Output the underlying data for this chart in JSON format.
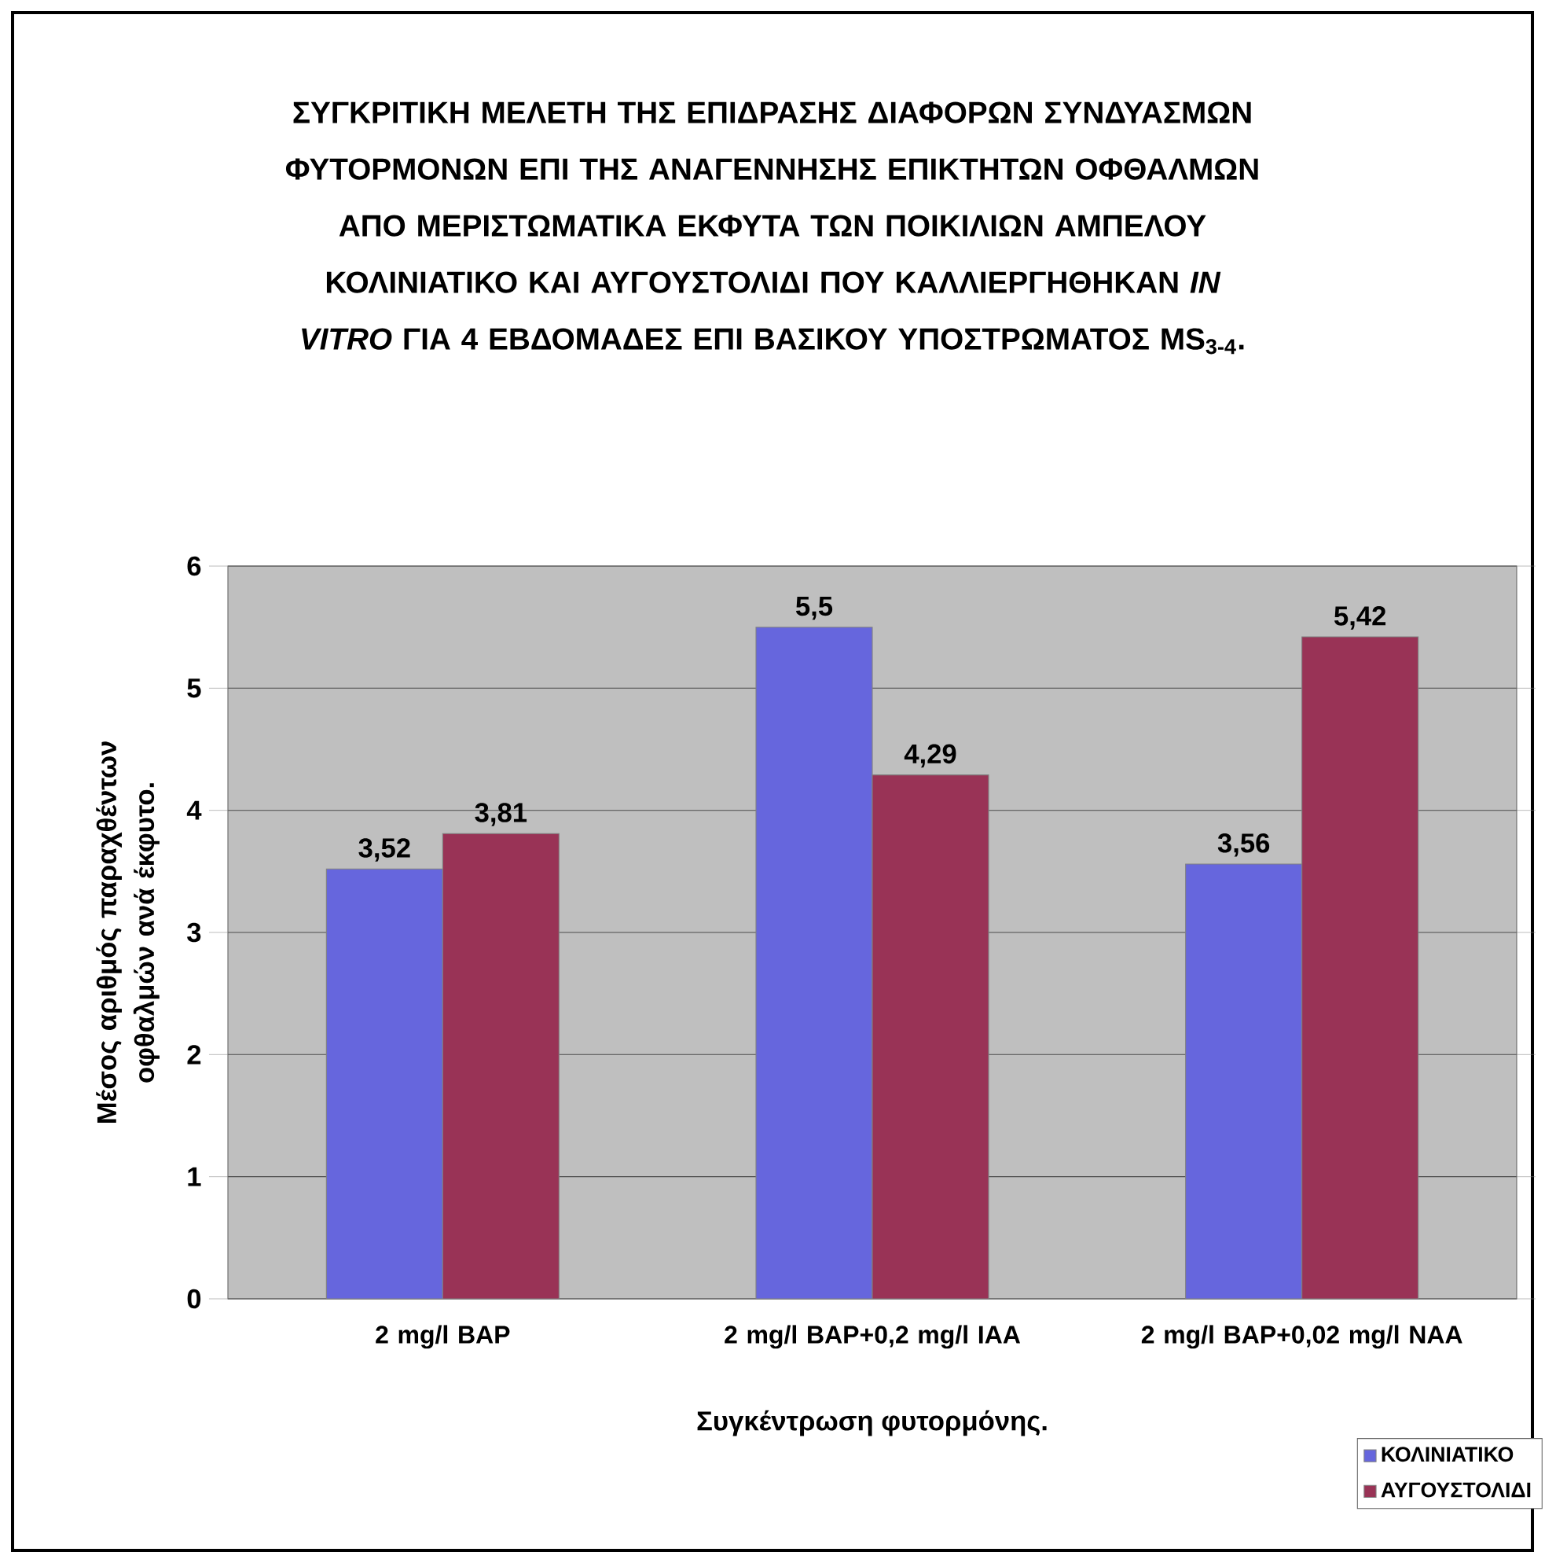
{
  "chart_data": {
    "type": "bar",
    "title": "ΣΥΓΚΡΙΤΙΚΗ ΜΕΛΕΤΗ ΤΗΣ ΕΠΙΔΡΑΣΗΣ ΔΙΑΦΟΡΩΝ ΣΥΝΔΥΑΣΜΩΝ ΦΥΤΟΡΜΟΝΩΝ ΕΠΙ ΤΗΣ ΑΝΑΓΕΝΝΗΣΗΣ ΕΠΙΚΤΗΤΩΝ ΟΦΘΑΛΜΩΝ ΑΠΟ ΜΕΡΙΣΤΩΜΑΤΙΚΑ ΕΚΦΥΤΑ ΤΩΝ ΠΟΙΚΙΛΙΩΝ ΑΜΠΕΛΟΥ ΚΟΛΙΝΙΑΤΙΚΟ ΚΑΙ ΑΥΓΟΥΣΤΟΛΙΔΙ ΠΟΥ ΚΑΛΛΙΕΡΓΗΘΗΚΑΝ *IN VITRO* ΓΙΑ 4 ΕΒΔΟΜΑΔΕΣ ΕΠΙ ΒΑΣΙΚΟΥ ΥΠΟΣΤΡΩΜΑΤΟΣ MS$_{3-4}$.",
    "xlabel": "Συγκέντρωση φυτορμόνης.",
    "ylabel": "Μέσος αριθμός παραχθέντων οφθαλμών ανά έκφυτο.",
    "categories": [
      "2 mg/l BAP",
      "2 mg/l BAP+0,2 mg/l IAA",
      "2 mg/l BAP+0,02 mg/l NAA"
    ],
    "series": [
      {
        "name": "ΚΟΛΙΝΙΑΤΙΚΟ",
        "color": "#6666dd",
        "values": [
          3.52,
          5.5,
          3.56
        ],
        "value_labels": [
          "3,52",
          "5,5",
          "3,56"
        ]
      },
      {
        "name": "ΑΥΓΟΥΣΤΟΛΙΔΙ",
        "color": "#993356",
        "values": [
          3.81,
          4.29,
          5.42
        ],
        "value_labels": [
          "3,81",
          "4,29",
          "5,42"
        ]
      }
    ],
    "ylim": [
      0,
      6
    ],
    "yticks": [
      0,
      1,
      2,
      3,
      4,
      5,
      6
    ],
    "grid": "y",
    "legend": "bottom right"
  }
}
